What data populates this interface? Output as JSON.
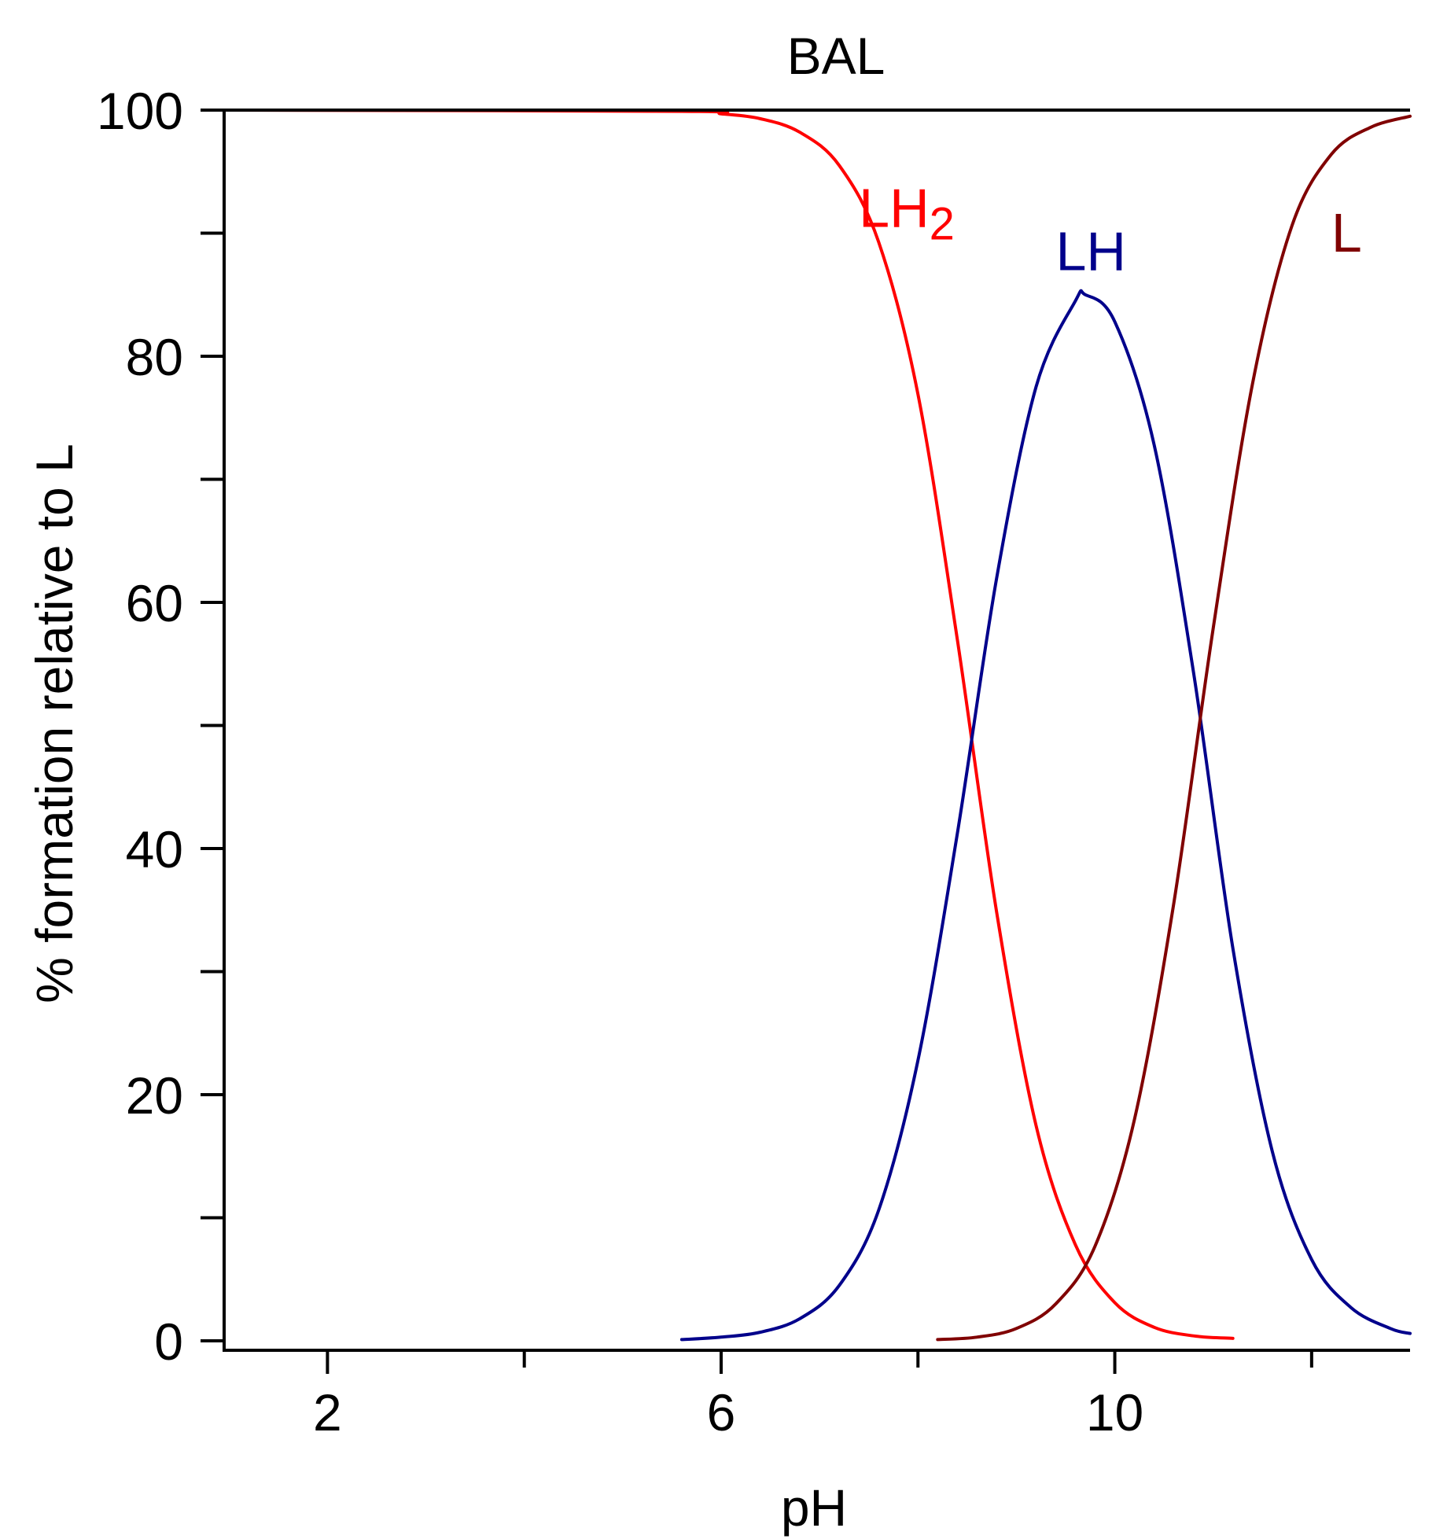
{
  "chart_data": {
    "type": "line",
    "title": "BAL",
    "xlabel": "pH",
    "ylabel": "% formation relative to L",
    "xlim": [
      0.95,
      13.0
    ],
    "ylim": [
      0,
      100
    ],
    "x_ticks_major": [
      "2",
      "6",
      "10"
    ],
    "x_ticks_major_values": [
      2,
      6,
      10
    ],
    "x_ticks_minor_values": [
      4,
      8,
      12
    ],
    "y_ticks_major": [
      "0",
      "20",
      "40",
      "60",
      "80",
      "100"
    ],
    "y_ticks_major_values": [
      0,
      20,
      40,
      60,
      80,
      100
    ],
    "y_ticks_minor_values": [
      10,
      30,
      50,
      70,
      90
    ],
    "grid": false,
    "series": [
      {
        "name": "LH2",
        "color": "#ff0000",
        "label_main": "LH",
        "label_sub": "2",
        "x": [
          1.0,
          5.6,
          6.0,
          6.4,
          6.8,
          7.2,
          7.6,
          8.0,
          8.4,
          8.8,
          9.2,
          9.6,
          10.0,
          10.4,
          10.8,
          11.2
        ],
        "y": [
          100,
          99.9,
          99.7,
          99.3,
          98.2,
          95.5,
          89.3,
          76.9,
          57.0,
          34.8,
          17.5,
          7.8,
          3.1,
          1.1,
          0.4,
          0.2
        ]
      },
      {
        "name": "LH",
        "color": "#00008b",
        "label_main": "LH",
        "x": [
          5.6,
          6.0,
          6.4,
          6.8,
          7.2,
          7.6,
          8.0,
          8.4,
          8.8,
          9.2,
          9.6,
          9.7,
          10.0,
          10.4,
          10.8,
          11.2,
          11.6,
          12.0,
          12.4,
          12.8,
          13.0
        ],
        "y": [
          0.1,
          0.3,
          0.7,
          1.8,
          4.5,
          10.6,
          22.8,
          41.2,
          62.0,
          77.5,
          84.5,
          85.0,
          82.8,
          72.8,
          54.3,
          31.9,
          15.4,
          6.6,
          2.7,
          1.0,
          0.6
        ]
      },
      {
        "name": "L",
        "color": "#800000",
        "label_main": "L",
        "x": [
          8.2,
          8.6,
          9.0,
          9.4,
          9.8,
          10.2,
          10.6,
          11.0,
          11.4,
          11.8,
          12.2,
          12.6,
          13.0
        ],
        "y": [
          0.1,
          0.3,
          1.0,
          3.0,
          7.7,
          18.0,
          35.6,
          57.9,
          77.8,
          90.6,
          96.4,
          98.6,
          99.5
        ]
      }
    ],
    "annotations": [
      {
        "series": "LH2",
        "x": 7.4,
        "y": 90.5
      },
      {
        "series": "LH",
        "x": 9.4,
        "y": 87.0
      },
      {
        "series": "L",
        "x": 12.2,
        "y": 88.5
      }
    ]
  }
}
